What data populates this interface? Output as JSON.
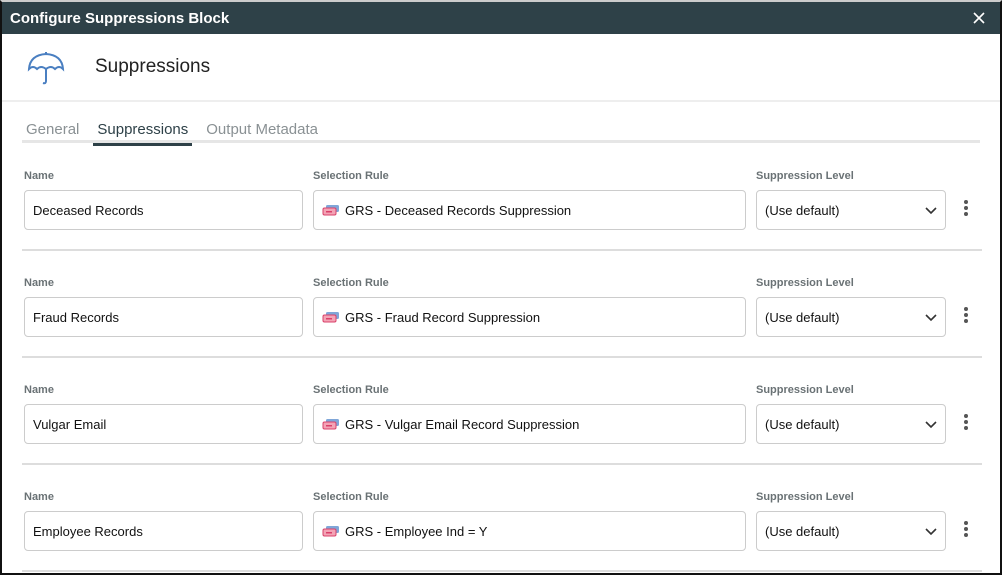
{
  "window": {
    "title": "Configure Suppressions Block",
    "header_title": "Suppressions",
    "header_icon": "umbrella-icon"
  },
  "tabs": [
    {
      "label": "General"
    },
    {
      "label": "Suppressions",
      "active": true
    },
    {
      "label": "Output Metadata"
    }
  ],
  "labels": {
    "name": "Name",
    "rule": "Selection Rule",
    "level": "Suppression Level"
  },
  "rows": [
    {
      "name": "Deceased Records",
      "rule": "GRS - Deceased Records Suppression",
      "level": "(Use default)"
    },
    {
      "name": "Fraud Records",
      "rule": "GRS - Fraud Record Suppression",
      "level": "(Use default)"
    },
    {
      "name": "Vulgar Email",
      "rule": "GRS - Vulgar Email Record Suppression",
      "level": "(Use default)"
    },
    {
      "name": "Employee Records",
      "rule": "GRS - Employee Ind = Y",
      "level": "(Use default)"
    }
  ],
  "colors": {
    "titlebar": "#2e4148",
    "accent": "#4a7fc1"
  }
}
